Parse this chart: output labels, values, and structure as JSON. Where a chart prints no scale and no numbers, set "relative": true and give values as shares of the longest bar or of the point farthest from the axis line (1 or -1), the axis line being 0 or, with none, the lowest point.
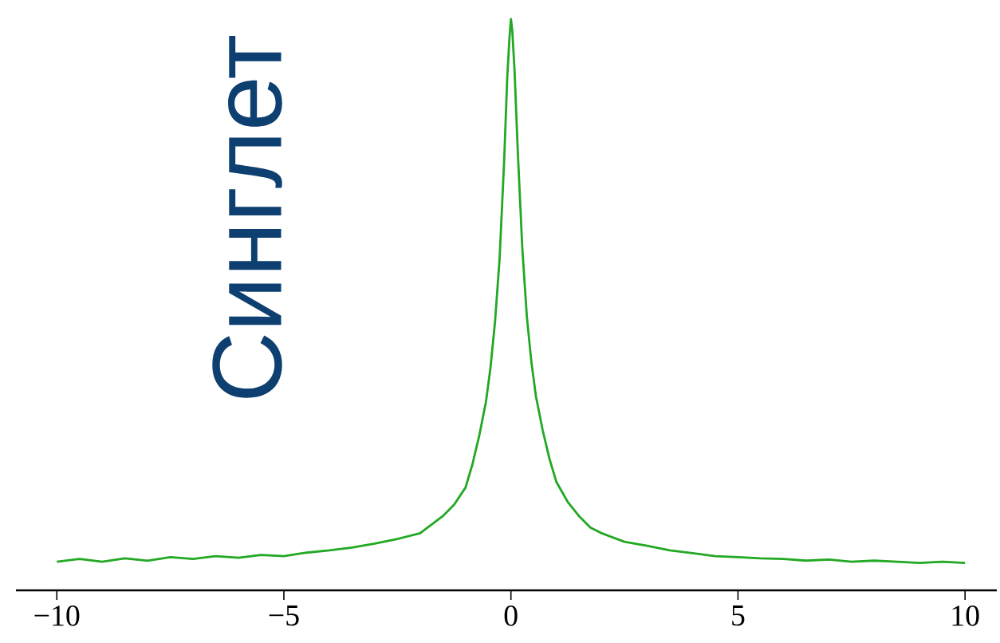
{
  "chart_data": {
    "type": "line",
    "title": "Синглет",
    "relative": true,
    "x": [
      -10,
      -9.5,
      -9,
      -8.5,
      -8,
      -7.5,
      -7,
      -6.5,
      -6,
      -5.5,
      -5,
      -4.5,
      -4,
      -3.5,
      -3,
      -2.5,
      -2,
      -1.75,
      -1.5,
      -1.25,
      -1,
      -0.85,
      -0.7,
      -0.55,
      -0.45,
      -0.35,
      -0.25,
      -0.15,
      -0.08,
      -0.03,
      0,
      0.03,
      0.08,
      0.15,
      0.25,
      0.35,
      0.45,
      0.55,
      0.7,
      0.85,
      1,
      1.25,
      1.5,
      1.75,
      2,
      2.5,
      3,
      3.5,
      4,
      4.5,
      5,
      5.5,
      6,
      6.5,
      7,
      7.5,
      8,
      8.5,
      9,
      9.5,
      10
    ],
    "values": [
      0.05,
      0.055,
      0.05,
      0.056,
      0.052,
      0.058,
      0.055,
      0.06,
      0.057,
      0.062,
      0.06,
      0.066,
      0.07,
      0.075,
      0.082,
      0.09,
      0.1,
      0.115,
      0.13,
      0.15,
      0.18,
      0.22,
      0.27,
      0.33,
      0.39,
      0.47,
      0.58,
      0.75,
      0.9,
      0.97,
      1.0,
      0.98,
      0.91,
      0.77,
      0.6,
      0.48,
      0.4,
      0.34,
      0.28,
      0.23,
      0.19,
      0.155,
      0.13,
      0.11,
      0.1,
      0.085,
      0.078,
      0.07,
      0.065,
      0.06,
      0.058,
      0.056,
      0.055,
      0.052,
      0.054,
      0.05,
      0.052,
      0.05,
      0.048,
      0.05,
      0.048
    ],
    "color": "#22a822",
    "xlim": [
      -10.9,
      10.7
    ],
    "xticks": [
      {
        "value": -10,
        "label": "−10"
      },
      {
        "value": -5,
        "label": "−5"
      },
      {
        "value": 0,
        "label": "0"
      },
      {
        "value": 5,
        "label": "5"
      },
      {
        "value": 10,
        "label": "10"
      }
    ]
  }
}
